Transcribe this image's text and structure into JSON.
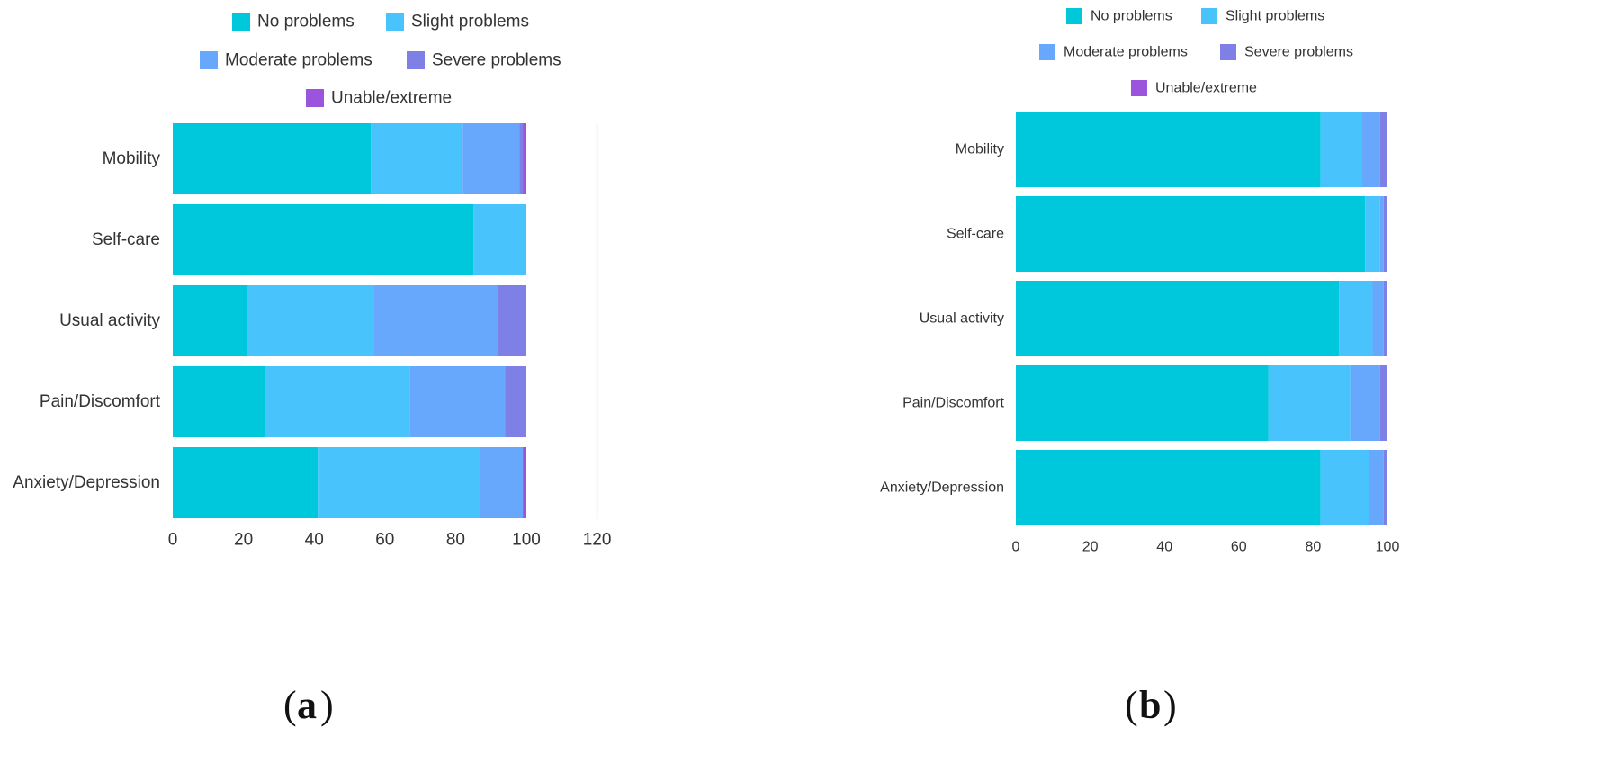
{
  "colors": {
    "no_problems": "#00C8DC",
    "slight_problems": "#48C3FC",
    "moderate_problems": "#68A8FC",
    "severe_problems": "#7E80E6",
    "unable_extreme": "#9B55DC",
    "axis": "#444444",
    "gridline": "#E4E4E4"
  },
  "panel_labels": {
    "a": "a",
    "b": "b"
  },
  "chart_data": [
    {
      "type": "bar",
      "orientation": "horizontal",
      "stacked": true,
      "panel": "a",
      "categories": [
        "Mobility",
        "Self-care",
        "Usual activity",
        "Pain/Discomfort",
        "Anxiety/Depression"
      ],
      "series": [
        {
          "name": "No problems",
          "values": [
            56,
            85,
            21,
            26,
            41
          ]
        },
        {
          "name": "Slight problems",
          "values": [
            26,
            15,
            36,
            41,
            46
          ]
        },
        {
          "name": "Moderate problems",
          "values": [
            16,
            0,
            35,
            27,
            12
          ]
        },
        {
          "name": "Severe problems",
          "values": [
            1,
            0,
            8,
            6,
            0
          ]
        },
        {
          "name": "Unable/extreme",
          "values": [
            1,
            0,
            0,
            0,
            1
          ]
        }
      ],
      "xticks": [
        "0",
        "20",
        "40",
        "60",
        "80",
        "100",
        "120"
      ],
      "xlim": [
        0,
        120
      ],
      "gridline_at": 120,
      "title": "",
      "xlabel": "",
      "ylabel": "",
      "legend_position": "top"
    },
    {
      "type": "bar",
      "orientation": "horizontal",
      "stacked": true,
      "panel": "b",
      "categories": [
        "Mobility",
        "Self-care",
        "Usual activity",
        "Pain/Discomfort",
        "Anxiety/Depression"
      ],
      "series": [
        {
          "name": "No problems",
          "values": [
            82,
            94,
            87,
            68,
            82
          ]
        },
        {
          "name": "Slight problems",
          "values": [
            11,
            4,
            9,
            22,
            13
          ]
        },
        {
          "name": "Moderate problems",
          "values": [
            5,
            1,
            3,
            8,
            4
          ]
        },
        {
          "name": "Severe problems",
          "values": [
            2,
            1,
            1,
            2,
            1
          ]
        },
        {
          "name": "Unable/extreme",
          "values": [
            0,
            0,
            0,
            0,
            0
          ]
        }
      ],
      "xticks": [
        "0",
        "20",
        "40",
        "60",
        "80",
        "100"
      ],
      "xlim": [
        0,
        100
      ],
      "title": "",
      "xlabel": "",
      "ylabel": "",
      "legend_position": "top"
    }
  ]
}
